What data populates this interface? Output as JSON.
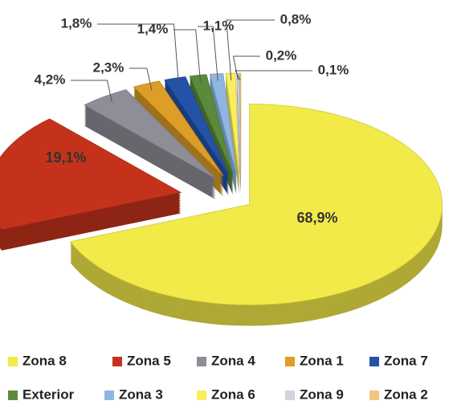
{
  "chart_data": {
    "type": "pie",
    "categories": [
      "Zona 8",
      "Zona 5",
      "Zona 4",
      "Zona 1",
      "Zona 7",
      "Exterior",
      "Zona 3",
      "Zona 6",
      "Zona 9",
      "Zona 2"
    ],
    "values": [
      68.9,
      19.1,
      4.2,
      2.3,
      1.8,
      1.4,
      1.1,
      0.8,
      0.2,
      0.1
    ],
    "value_labels": [
      "68,9%",
      "19,1%",
      "4,2%",
      "2,3%",
      "1,8%",
      "1,4%",
      "1,1%",
      "0,8%",
      "0,2%",
      "0,1%"
    ],
    "colors": [
      "#f2ea48",
      "#c5321c",
      "#8e8e98",
      "#dd9d26",
      "#2452a6",
      "#5b8a3c",
      "#8fb6e2",
      "#f7ef5e",
      "#d2d2dc",
      "#f2c57e"
    ],
    "legend": "bottom"
  }
}
